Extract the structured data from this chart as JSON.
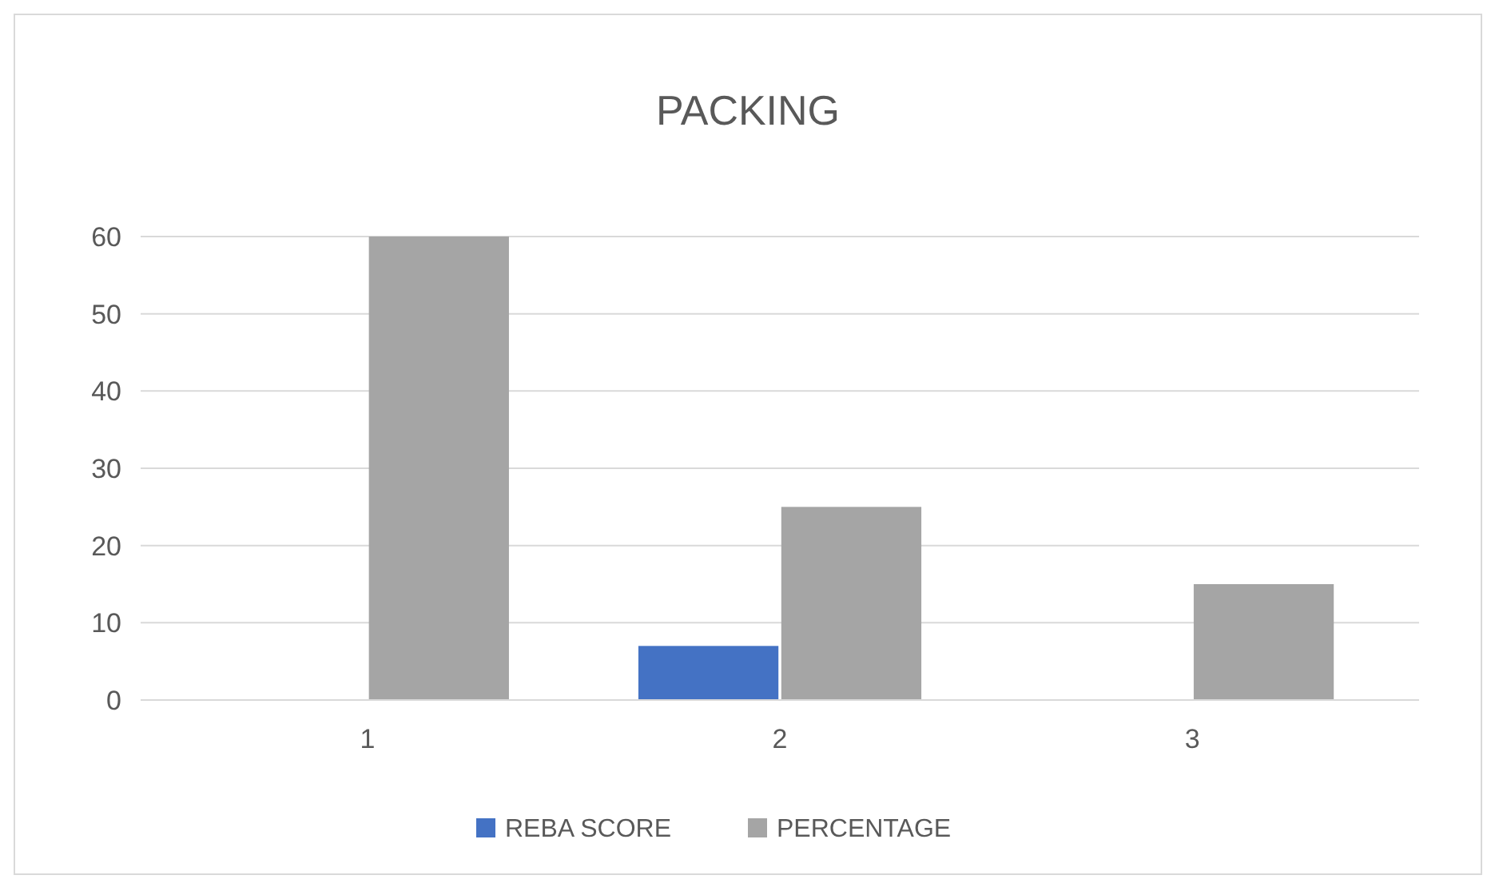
{
  "chart_data": {
    "type": "bar",
    "title": "PACKING",
    "categories": [
      "1",
      "2",
      "3"
    ],
    "series": [
      {
        "name": "REBA SCORE",
        "color": "#4472c4",
        "values": [
          0,
          7,
          0
        ]
      },
      {
        "name": "PERCENTAGE",
        "color": "#a5a5a5",
        "values": [
          60,
          25,
          15
        ]
      }
    ],
    "ylim": [
      0,
      60
    ],
    "yticks": [
      0,
      10,
      20,
      30,
      40,
      50,
      60
    ],
    "grid": "y",
    "legend": "bottom"
  }
}
